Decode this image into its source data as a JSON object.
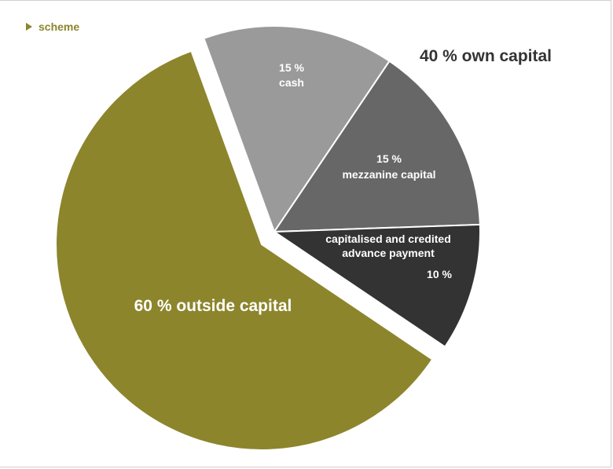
{
  "header": {
    "label": "scheme"
  },
  "colors": {
    "header": "#8c852c",
    "outside_capital": "#8c852c",
    "cash": "#9a9a9a",
    "mezzanine_capital": "#676767",
    "advance_payment": "#333333",
    "group_label": "#333333"
  },
  "chart_data": {
    "type": "pie",
    "slices": [
      {
        "key": "cash",
        "value": 15,
        "label_lines": [
          "15 %",
          "cash"
        ]
      },
      {
        "key": "mezzanine_capital",
        "value": 15,
        "label_lines": [
          "15 %",
          "mezzanine capital"
        ]
      },
      {
        "key": "advance_payment",
        "value": 10,
        "label_lines": [
          "capitalised and credited",
          "advance payment",
          "10 %"
        ]
      },
      {
        "key": "outside_capital",
        "value": 60,
        "label_lines": [
          "60 % outside capital"
        ]
      }
    ],
    "group_label": "40 % own capital",
    "legend": "none"
  }
}
